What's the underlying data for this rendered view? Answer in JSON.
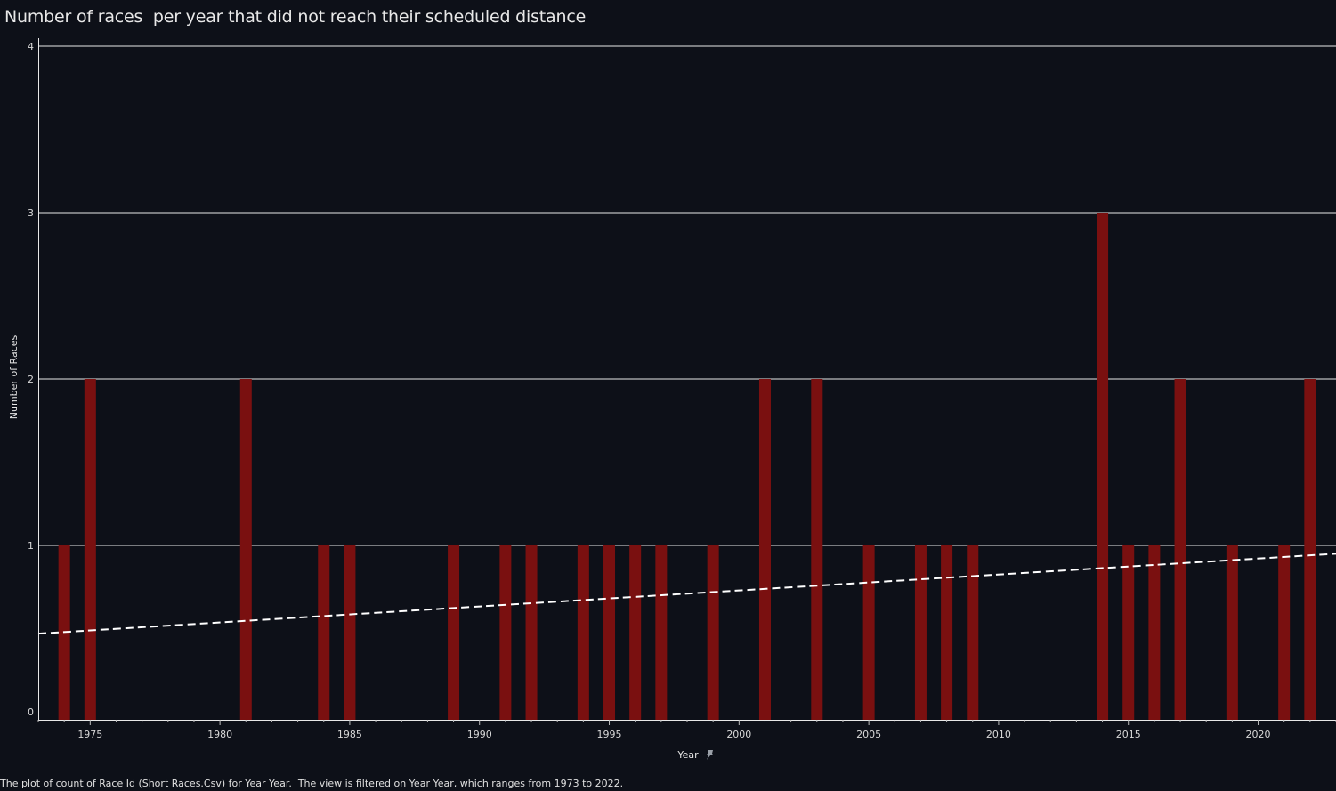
{
  "colors": {
    "background": "#0d1018",
    "bar": "#7a1010",
    "grid": "#e8e8e8",
    "trend": "#ffffff",
    "text": "#e6e6e6"
  },
  "footer_text": "The plot of count of Race Id (Short Races.Csv) for Year Year.  The view is filtered on Year Year, which ranges from 1973 to 2022.",
  "axis_pin_icon": "pin-icon",
  "chart_data": {
    "type": "bar",
    "title": "Number of races  per year that did not reach their scheduled distance",
    "xlabel": "Year",
    "ylabel": "Number of Races",
    "xlim": [
      1973,
      2023
    ],
    "ylim": [
      0,
      4
    ],
    "x_ticks": [
      1975,
      1980,
      1985,
      1990,
      1995,
      2000,
      2005,
      2010,
      2015,
      2020
    ],
    "y_ticks": [
      0,
      1,
      2,
      3,
      4
    ],
    "grid": true,
    "x": [
      1974,
      1975,
      1981,
      1984,
      1985,
      1989,
      1991,
      1992,
      1994,
      1995,
      1996,
      1997,
      1999,
      2001,
      2003,
      2005,
      2007,
      2008,
      2009,
      2014,
      2015,
      2016,
      2017,
      2019,
      2021,
      2022
    ],
    "values": [
      1,
      2,
      2,
      1,
      1,
      1,
      1,
      1,
      1,
      1,
      1,
      1,
      1,
      2,
      2,
      1,
      1,
      1,
      1,
      3,
      1,
      1,
      2,
      1,
      1,
      2
    ],
    "trend_line": {
      "style": "dashed",
      "x": [
        1973,
        2023
      ],
      "y": [
        0.47,
        0.95
      ]
    }
  }
}
